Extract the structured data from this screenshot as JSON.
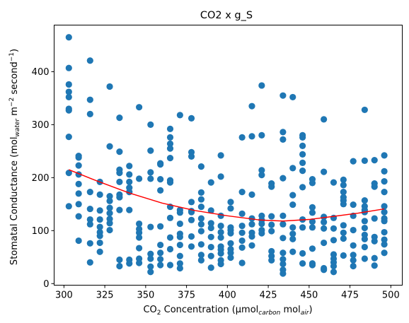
{
  "chart_data": {
    "type": "scatter",
    "title": "CO2 x g_S",
    "xlabel": {
      "main": "CO",
      "sub2": "2",
      "rest": " Concentration (μmol",
      "sub_carbon": "carbon",
      "mid": " mol",
      "sub_air": "air",
      "end": ")"
    },
    "ylabel": {
      "main": "Stomatal Conductance (mol",
      "sub_water": "water",
      "mid": " m",
      "sup1": "−2",
      "mid2": " second",
      "sup2": "−1",
      "end": ")"
    },
    "xlim": [
      294,
      507
    ],
    "ylim": [
      -3,
      488
    ],
    "xticks": [
      300,
      325,
      350,
      375,
      400,
      425,
      450,
      475,
      500
    ],
    "yticks": [
      0,
      100,
      200,
      300,
      400
    ],
    "grid": false,
    "point_color": "#1f77b4",
    "fit_color": "#ff0000",
    "points": [
      [
        303,
        465
      ],
      [
        303,
        407
      ],
      [
        303,
        376
      ],
      [
        303,
        362
      ],
      [
        303,
        352
      ],
      [
        303,
        330
      ],
      [
        303,
        327
      ],
      [
        303,
        277
      ],
      [
        303,
        209
      ],
      [
        303,
        146
      ],
      [
        309,
        241
      ],
      [
        309,
        238
      ],
      [
        309,
        223
      ],
      [
        309,
        206
      ],
      [
        309,
        188
      ],
      [
        309,
        170
      ],
      [
        309,
        150
      ],
      [
        309,
        127
      ],
      [
        309,
        81
      ],
      [
        316,
        421
      ],
      [
        316,
        347
      ],
      [
        316,
        320
      ],
      [
        316,
        173
      ],
      [
        316,
        141
      ],
      [
        316,
        121
      ],
      [
        316,
        112
      ],
      [
        316,
        76
      ],
      [
        316,
        40
      ],
      [
        322,
        192
      ],
      [
        322,
        168
      ],
      [
        322,
        138
      ],
      [
        322,
        121
      ],
      [
        322,
        107
      ],
      [
        322,
        97
      ],
      [
        322,
        90
      ],
      [
        322,
        77
      ],
      [
        322,
        60
      ],
      [
        328,
        372
      ],
      [
        328,
        259
      ],
      [
        328,
        165
      ],
      [
        328,
        156
      ],
      [
        328,
        143
      ],
      [
        328,
        133
      ],
      [
        328,
        122
      ],
      [
        328,
        114
      ],
      [
        328,
        101
      ],
      [
        334,
        313
      ],
      [
        334,
        249
      ],
      [
        334,
        215
      ],
      [
        334,
        209
      ],
      [
        334,
        192
      ],
      [
        334,
        168
      ],
      [
        334,
        163
      ],
      [
        334,
        139
      ],
      [
        334,
        45
      ],
      [
        334,
        33
      ],
      [
        340,
        222
      ],
      [
        340,
        206
      ],
      [
        340,
        192
      ],
      [
        340,
        181
      ],
      [
        340,
        173
      ],
      [
        340,
        139
      ],
      [
        340,
        45
      ],
      [
        340,
        38
      ],
      [
        346,
        333
      ],
      [
        346,
        198
      ],
      [
        346,
        113
      ],
      [
        346,
        103
      ],
      [
        346,
        96
      ],
      [
        346,
        87
      ],
      [
        346,
        67
      ],
      [
        346,
        47
      ],
      [
        346,
        39
      ],
      [
        353,
        300
      ],
      [
        353,
        251
      ],
      [
        353,
        210
      ],
      [
        353,
        198
      ],
      [
        353,
        107
      ],
      [
        353,
        56
      ],
      [
        353,
        47
      ],
      [
        353,
        32
      ],
      [
        353,
        22
      ],
      [
        359,
        227
      ],
      [
        359,
        225
      ],
      [
        359,
        197
      ],
      [
        359,
        176
      ],
      [
        359,
        108
      ],
      [
        359,
        73
      ],
      [
        359,
        58
      ],
      [
        359,
        46
      ],
      [
        359,
        35
      ],
      [
        365,
        292
      ],
      [
        365,
        276
      ],
      [
        365,
        264
      ],
      [
        365,
        255
      ],
      [
        365,
        237
      ],
      [
        365,
        195
      ],
      [
        365,
        191
      ],
      [
        365,
        145
      ],
      [
        365,
        124
      ],
      [
        365,
        87
      ],
      [
        365,
        65
      ],
      [
        365,
        35
      ],
      [
        371,
        318
      ],
      [
        371,
        139
      ],
      [
        371,
        134
      ],
      [
        371,
        113
      ],
      [
        371,
        94
      ],
      [
        371,
        88
      ],
      [
        371,
        73
      ],
      [
        371,
        52
      ],
      [
        371,
        38
      ],
      [
        371,
        29
      ],
      [
        378,
        312
      ],
      [
        378,
        248
      ],
      [
        378,
        240
      ],
      [
        378,
        154
      ],
      [
        378,
        137
      ],
      [
        378,
        135
      ],
      [
        378,
        120
      ],
      [
        378,
        89
      ],
      [
        378,
        70
      ],
      [
        384,
        221
      ],
      [
        384,
        172
      ],
      [
        384,
        159
      ],
      [
        384,
        145
      ],
      [
        384,
        123
      ],
      [
        384,
        112
      ],
      [
        384,
        99
      ],
      [
        384,
        74
      ],
      [
        384,
        54
      ],
      [
        384,
        44
      ],
      [
        390,
        191
      ],
      [
        390,
        138
      ],
      [
        390,
        114
      ],
      [
        390,
        105
      ],
      [
        390,
        88
      ],
      [
        390,
        69
      ],
      [
        390,
        52
      ],
      [
        390,
        30
      ],
      [
        396,
        242
      ],
      [
        396,
        202
      ],
      [
        396,
        128
      ],
      [
        396,
        109
      ],
      [
        396,
        97
      ],
      [
        396,
        87
      ],
      [
        396,
        70
      ],
      [
        396,
        64
      ],
      [
        396,
        57
      ],
      [
        396,
        44
      ],
      [
        396,
        37
      ],
      [
        402,
        154
      ],
      [
        402,
        142
      ],
      [
        402,
        106
      ],
      [
        402,
        101
      ],
      [
        402,
        95
      ],
      [
        402,
        76
      ],
      [
        402,
        65
      ],
      [
        402,
        58
      ],
      [
        402,
        49
      ],
      [
        409,
        276
      ],
      [
        409,
        173
      ],
      [
        409,
        132
      ],
      [
        409,
        109
      ],
      [
        409,
        96
      ],
      [
        409,
        81
      ],
      [
        409,
        68
      ],
      [
        409,
        39
      ],
      [
        415,
        335
      ],
      [
        415,
        278
      ],
      [
        415,
        168
      ],
      [
        415,
        123
      ],
      [
        415,
        112
      ],
      [
        415,
        96
      ],
      [
        415,
        89
      ],
      [
        415,
        72
      ],
      [
        421,
        374
      ],
      [
        421,
        280
      ],
      [
        421,
        214
      ],
      [
        421,
        205
      ],
      [
        421,
        128
      ],
      [
        421,
        120
      ],
      [
        421,
        113
      ],
      [
        421,
        101
      ],
      [
        421,
        95
      ],
      [
        427,
        189
      ],
      [
        427,
        183
      ],
      [
        427,
        127
      ],
      [
        427,
        111
      ],
      [
        427,
        99
      ],
      [
        427,
        61
      ],
      [
        427,
        52
      ],
      [
        427,
        44
      ],
      [
        434,
        355
      ],
      [
        434,
        286
      ],
      [
        434,
        272
      ],
      [
        434,
        199
      ],
      [
        434,
        128
      ],
      [
        434,
        112
      ],
      [
        434,
        86
      ],
      [
        434,
        58
      ],
      [
        434,
        46
      ],
      [
        434,
        37
      ],
      [
        434,
        26
      ],
      [
        434,
        19
      ],
      [
        440,
        352
      ],
      [
        440,
        218
      ],
      [
        440,
        167
      ],
      [
        440,
        149
      ],
      [
        440,
        106
      ],
      [
        440,
        94
      ],
      [
        440,
        84
      ],
      [
        440,
        60
      ],
      [
        446,
        280
      ],
      [
        446,
        276
      ],
      [
        446,
        260
      ],
      [
        446,
        244
      ],
      [
        446,
        228
      ],
      [
        446,
        213
      ],
      [
        446,
        182
      ],
      [
        446,
        121
      ],
      [
        446,
        106
      ],
      [
        446,
        57
      ],
      [
        446,
        38
      ],
      [
        452,
        197
      ],
      [
        452,
        190
      ],
      [
        452,
        144
      ],
      [
        452,
        134
      ],
      [
        452,
        117
      ],
      [
        452,
        106
      ],
      [
        452,
        66
      ],
      [
        452,
        38
      ],
      [
        452,
        35
      ],
      [
        459,
        310
      ],
      [
        459,
        211
      ],
      [
        459,
        126
      ],
      [
        459,
        116
      ],
      [
        459,
        104
      ],
      [
        459,
        77
      ],
      [
        459,
        29
      ],
      [
        459,
        26
      ],
      [
        465,
        191
      ],
      [
        465,
        124
      ],
      [
        465,
        104
      ],
      [
        465,
        82
      ],
      [
        465,
        55
      ],
      [
        465,
        47
      ],
      [
        465,
        40
      ],
      [
        465,
        33
      ],
      [
        465,
        22
      ],
      [
        471,
        196
      ],
      [
        471,
        186
      ],
      [
        471,
        173
      ],
      [
        471,
        163
      ],
      [
        471,
        157
      ],
      [
        471,
        150
      ],
      [
        471,
        110
      ],
      [
        471,
        96
      ],
      [
        471,
        85
      ],
      [
        471,
        53
      ],
      [
        477,
        231
      ],
      [
        477,
        149
      ],
      [
        477,
        128
      ],
      [
        477,
        101
      ],
      [
        477,
        72
      ],
      [
        477,
        54
      ],
      [
        477,
        44
      ],
      [
        477,
        33
      ],
      [
        484,
        328
      ],
      [
        484,
        232
      ],
      [
        484,
        157
      ],
      [
        484,
        146
      ],
      [
        484,
        139
      ],
      [
        484,
        135
      ],
      [
        484,
        118
      ],
      [
        484,
        105
      ],
      [
        484,
        92
      ],
      [
        484,
        84
      ],
      [
        484,
        69
      ],
      [
        484,
        47
      ],
      [
        490,
        233
      ],
      [
        490,
        189
      ],
      [
        490,
        183
      ],
      [
        490,
        123
      ],
      [
        490,
        88
      ],
      [
        490,
        80
      ],
      [
        490,
        48
      ],
      [
        490,
        34
      ],
      [
        496,
        242
      ],
      [
        496,
        212
      ],
      [
        496,
        193
      ],
      [
        496,
        173
      ],
      [
        496,
        146
      ],
      [
        496,
        135
      ],
      [
        496,
        123
      ],
      [
        496,
        118
      ],
      [
        496,
        97
      ],
      [
        496,
        83
      ],
      [
        496,
        74
      ],
      [
        496,
        58
      ]
    ],
    "fit": {
      "type": "quadratic",
      "x": [
        303,
        320,
        340,
        360,
        380,
        400,
        420,
        434,
        450,
        465,
        480,
        496
      ],
      "y": [
        215,
        194,
        171,
        152,
        138,
        128,
        120,
        118,
        121,
        127,
        133,
        141
      ]
    }
  }
}
